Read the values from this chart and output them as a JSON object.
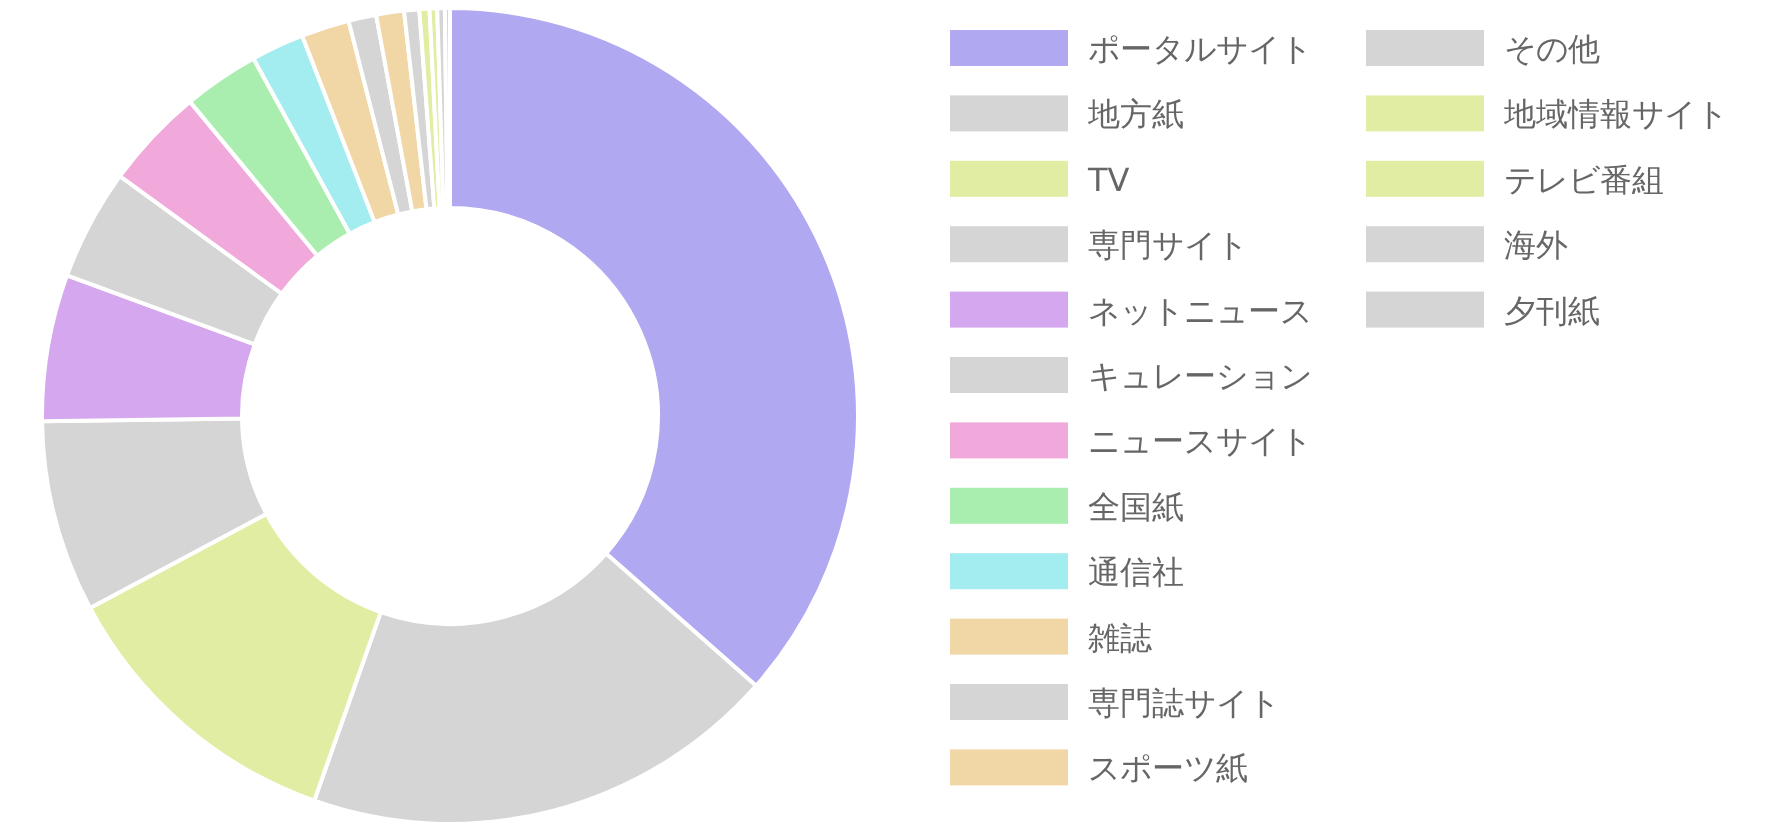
{
  "chart_data": {
    "type": "donut",
    "categories": [
      "ポータルサイト",
      "地方紙",
      "TV",
      "専門サイト",
      "ネットニュース",
      "キュレーション",
      "ニュースサイト",
      "全国紙",
      "通信社",
      "雑誌",
      "専門誌サイト",
      "スポーツ紙",
      "その他",
      "地域情報サイト",
      "テレビ番組",
      "海外",
      "夕刊紙"
    ],
    "values": [
      36.5,
      18.9,
      11.8,
      7.6,
      5.8,
      4.4,
      4.0,
      3.0,
      2.1,
      1.9,
      1.1,
      1.1,
      0.6,
      0.4,
      0.3,
      0.3,
      0.2
    ],
    "colors": [
      "#b0a8f0",
      "#d5d5d5",
      "#e1eda2",
      "#d5d5d5",
      "#d4a7ee",
      "#d5d5d5",
      "#f0a9da",
      "#a9eeaf",
      "#a3ecf0",
      "#f1d6a6",
      "#d5d5d5",
      "#f1d6a6",
      "#d5d5d5",
      "#e1eda2",
      "#e1eda2",
      "#d5d5d5",
      "#d5d5d5"
    ],
    "legend": "right"
  }
}
